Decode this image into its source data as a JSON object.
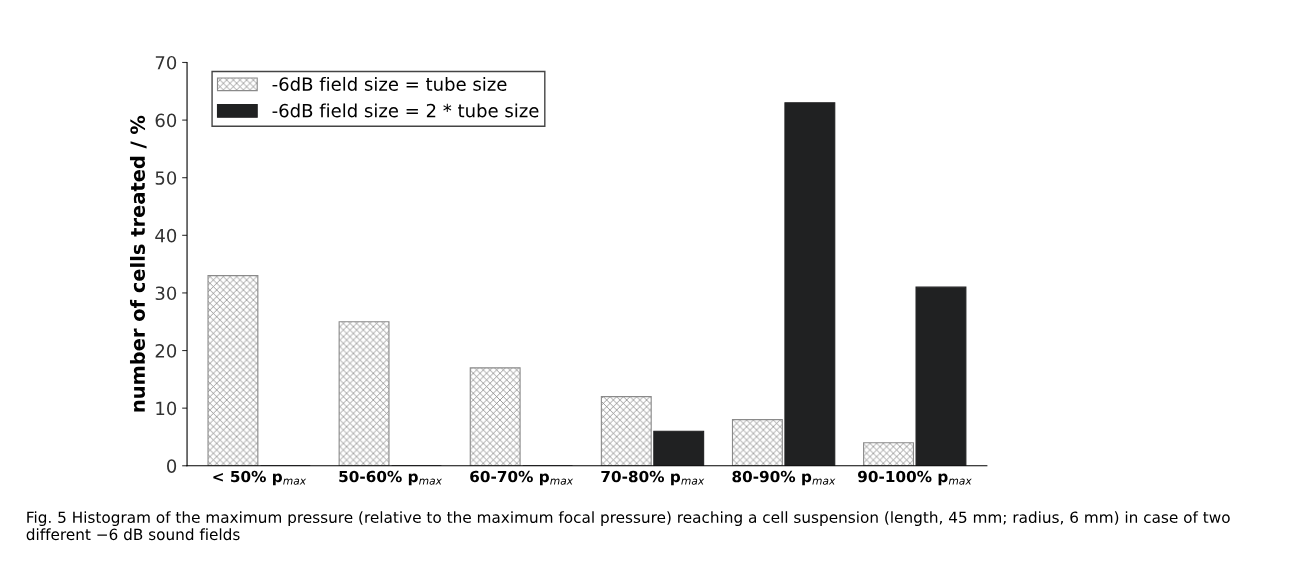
{
  "chart_data": {
    "type": "bar",
    "ylabel": "number of cells treated / %",
    "categories": [
      "< 50% p$_{max}$",
      "50-60% p$_{max}$",
      "60-70% p$_{max}$",
      "70-80% p$_{max}$",
      "80-90% p$_{max}$",
      "90-100% p$_{max}$"
    ],
    "series": [
      {
        "name": "-6dB field size = tube size",
        "color": "#8a8a8a",
        "values": [
          33,
          25,
          17,
          12,
          8,
          4
        ]
      },
      {
        "name": "-6dB field size = 2 * tube size",
        "color": "#202122",
        "values": [
          0,
          0,
          0,
          6,
          63,
          31
        ]
      }
    ],
    "ylim": [
      0,
      70
    ],
    "yticks": [
      0,
      10,
      20,
      30,
      40,
      50,
      60,
      70
    ],
    "grid": false,
    "legend": "top left",
    "annotations": [
      "Fig. 5 Histogram of the maximum pressure (relative to the maximum focal pressure) reaching a cell suspension (length, 45 mm; radius, 6 mm) in case of two different −6 dB sound fields"
    ]
  }
}
